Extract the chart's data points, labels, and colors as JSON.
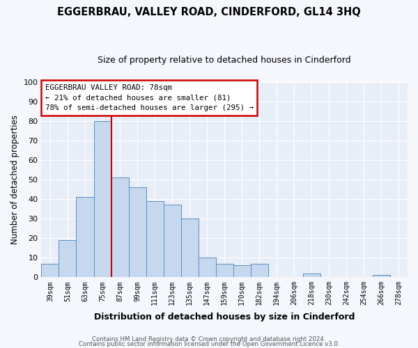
{
  "title": "EGGERBRAU, VALLEY ROAD, CINDERFORD, GL14 3HQ",
  "subtitle": "Size of property relative to detached houses in Cinderford",
  "xlabel": "Distribution of detached houses by size in Cinderford",
  "ylabel": "Number of detached properties",
  "bar_color": "#c5d8ee",
  "bar_edge_color": "#5a8fc4",
  "bg_color": "#e8eef8",
  "fig_bg_color": "#f5f7fc",
  "grid_color": "#ffffff",
  "categories": [
    "39sqm",
    "51sqm",
    "63sqm",
    "75sqm",
    "87sqm",
    "99sqm",
    "111sqm",
    "123sqm",
    "135sqm",
    "147sqm",
    "159sqm",
    "170sqm",
    "182sqm",
    "194sqm",
    "206sqm",
    "218sqm",
    "230sqm",
    "242sqm",
    "254sqm",
    "266sqm",
    "278sqm"
  ],
  "values": [
    7,
    19,
    41,
    80,
    51,
    46,
    39,
    37,
    30,
    10,
    7,
    6,
    7,
    0,
    0,
    2,
    0,
    0,
    0,
    1,
    0
  ],
  "ylim": [
    0,
    100
  ],
  "yticks": [
    0,
    10,
    20,
    30,
    40,
    50,
    60,
    70,
    80,
    90,
    100
  ],
  "vline_color": "#cc0000",
  "annotation_title": "EGGERBRAU VALLEY ROAD: 78sqm",
  "annotation_line1": "← 21% of detached houses are smaller (81)",
  "annotation_line2": "78% of semi-detached houses are larger (295) →",
  "annotation_box_color": "#ffffff",
  "annotation_box_edge_color": "#cc0000",
  "footer1": "Contains HM Land Registry data © Crown copyright and database right 2024.",
  "footer2": "Contains public sector information licensed under the Open Government Licence v3.0."
}
